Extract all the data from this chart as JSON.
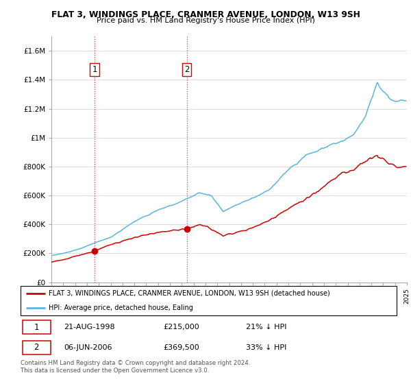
{
  "title": "FLAT 3, WINDINGS PLACE, CRANMER AVENUE, LONDON, W13 9SH",
  "subtitle": "Price paid vs. HM Land Registry's House Price Index (HPI)",
  "legend_line1": "FLAT 3, WINDINGS PLACE, CRANMER AVENUE, LONDON, W13 9SH (detached house)",
  "legend_line2": "HPI: Average price, detached house, Ealing",
  "footer": "Contains HM Land Registry data © Crown copyright and database right 2024.\nThis data is licensed under the Open Government Licence v3.0.",
  "sale1_date_label": "21-AUG-1998",
  "sale1_price_label": "£215,000",
  "sale1_hpi_label": "21% ↓ HPI",
  "sale1_year": 1998.64,
  "sale1_price": 215000,
  "sale2_date_label": "06-JUN-2006",
  "sale2_price_label": "£369,500",
  "sale2_hpi_label": "33% ↓ HPI",
  "sale2_year": 2006.43,
  "sale2_price": 369500,
  "red_color": "#cc0000",
  "blue_color": "#5ab4e0",
  "ylim_max": 1700000,
  "yticks": [
    0,
    200000,
    400000,
    600000,
    800000,
    1000000,
    1200000,
    1400000,
    1600000
  ],
  "ytick_labels": [
    "£0",
    "£200K",
    "£400K",
    "£600K",
    "£800K",
    "£1M",
    "£1.2M",
    "£1.4M",
    "£1.6M"
  ],
  "xstart": 1995,
  "xend": 2025
}
